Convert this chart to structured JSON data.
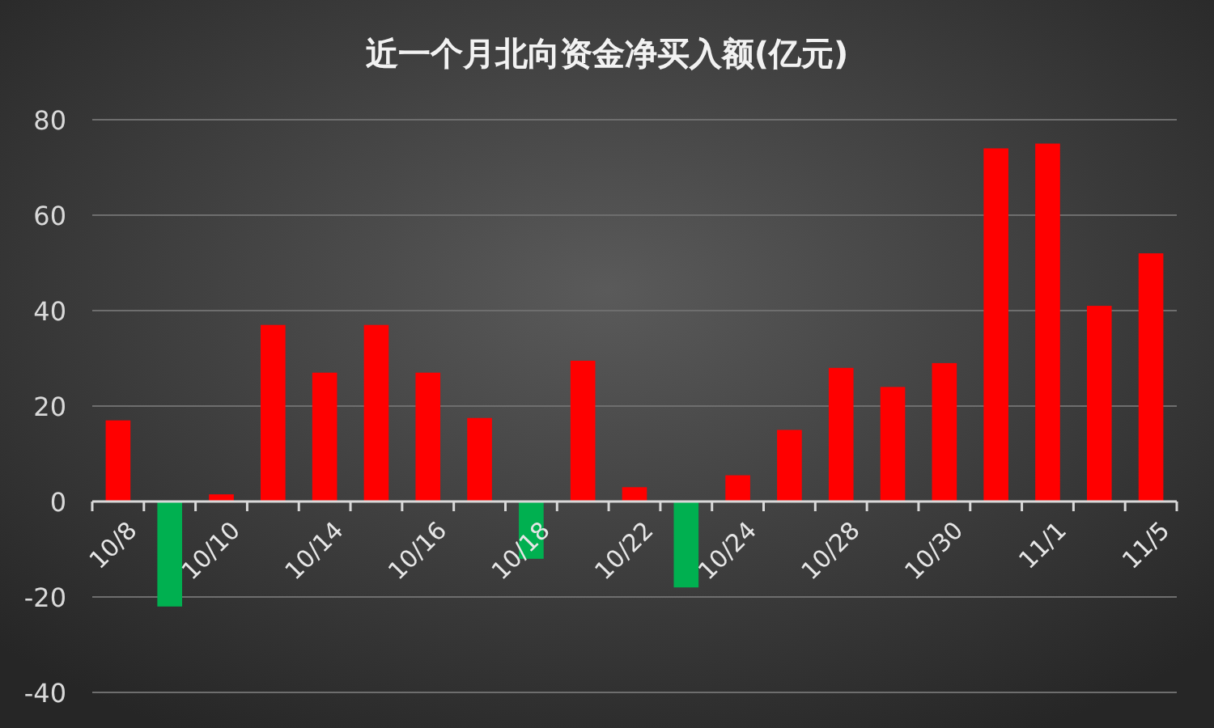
{
  "chart_data": {
    "type": "bar",
    "title": "近一个月北向资金净买入额(亿元)",
    "categories": [
      "10/8",
      null,
      "10/10",
      null,
      "10/14",
      null,
      "10/16",
      null,
      "10/18",
      null,
      "10/22",
      null,
      "10/24",
      null,
      "10/28",
      null,
      "10/30",
      null,
      "11/1",
      null,
      "11/5"
    ],
    "values": [
      17,
      -22,
      1.5,
      37,
      27,
      37,
      27,
      17.5,
      -12,
      29.5,
      3,
      -18,
      5.5,
      15,
      28,
      24,
      29,
      74,
      75,
      41,
      52
    ],
    "colors": [
      "#ff0000",
      "#00b050",
      "#ff0000",
      "#ff0000",
      "#ff0000",
      "#ff0000",
      "#ff0000",
      "#ff0000",
      "#00b050",
      "#ff0000",
      "#ff0000",
      "#00b050",
      "#ff0000",
      "#ff0000",
      "#ff0000",
      "#ff0000",
      "#ff0000",
      "#ff0000",
      "#ff0000",
      "#ff0000",
      "#ff0000"
    ],
    "ylim": [
      -40,
      80
    ],
    "yticks": [
      -40,
      -20,
      0,
      20,
      40,
      60,
      80
    ],
    "grid": "y"
  }
}
